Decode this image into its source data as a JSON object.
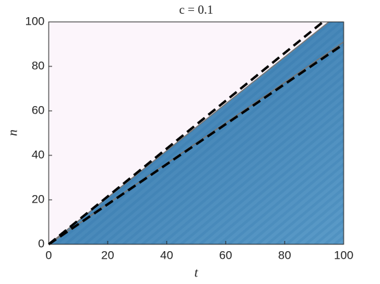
{
  "chart_data": {
    "type": "heatmap-lines",
    "title": "c = 0.1",
    "x_label": "t",
    "y_label": "n",
    "xlim": [
      0,
      100
    ],
    "ylim": [
      0,
      100
    ],
    "xticks": [
      0,
      20,
      40,
      60,
      80,
      100
    ],
    "yticks": [
      0,
      20,
      40,
      60,
      80,
      100
    ],
    "background_color": "#fcf5fb",
    "field_color": "#5b9bc8",
    "series": [
      {
        "color": "#777777",
        "style": "solid",
        "x": [
          0,
          95
        ],
        "values": [
          0,
          100
        ]
      },
      {
        "color": "#777777",
        "style": "solid",
        "x": [
          0,
          100
        ],
        "values": [
          0,
          91
        ]
      },
      {
        "color": "#000000",
        "style": "dashed",
        "x": [
          0,
          93
        ],
        "values": [
          0,
          100
        ]
      },
      {
        "color": "#000000",
        "style": "dashed",
        "x": [
          0,
          100
        ],
        "values": [
          0,
          90
        ]
      }
    ]
  }
}
